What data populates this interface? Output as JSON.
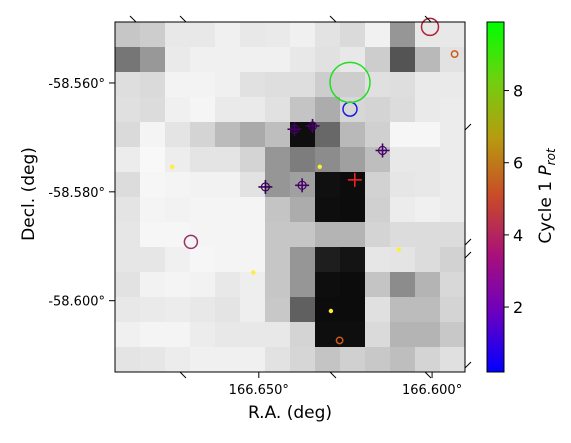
{
  "chart_data": {
    "type": "heatmap",
    "xlabel": "R.A. (deg)",
    "ylabel": "Decl. (deg)",
    "x_ticks": [
      {
        "value": 166.65,
        "label": "166.650°"
      },
      {
        "value": 166.6,
        "label": "166.600°"
      }
    ],
    "y_ticks": [
      {
        "value": -58.6,
        "label": "-58.600°"
      },
      {
        "value": -58.58,
        "label": "-58.580°"
      },
      {
        "value": -58.56,
        "label": "-58.560°"
      }
    ],
    "xlim": [
      166.6915,
      166.5905
    ],
    "ylim": [
      -58.5488,
      -58.6131
    ],
    "pixel_grid": {
      "rows": 14,
      "cols": 14,
      "gray_levels": [
        [
          198,
          205,
          232,
          232,
          240,
          232,
          234,
          240,
          227,
          218,
          241,
          150,
          232,
          232
        ],
        [
          118,
          152,
          234,
          240,
          240,
          240,
          240,
          232,
          225,
          232,
          205,
          84,
          185,
          226
        ],
        [
          222,
          218,
          243,
          243,
          240,
          225,
          222,
          222,
          205,
          205,
          224,
          222,
          234,
          234
        ],
        [
          224,
          220,
          240,
          245,
          234,
          234,
          225,
          196,
          172,
          215,
          212,
          220,
          234,
          236
        ],
        [
          218,
          244,
          228,
          212,
          187,
          170,
          190,
          14,
          104,
          185,
          208,
          246,
          246,
          236
        ],
        [
          236,
          248,
          237,
          228,
          228,
          212,
          150,
          125,
          140,
          160,
          190,
          232,
          232,
          236
        ],
        [
          220,
          246,
          244,
          242,
          242,
          226,
          150,
          160,
          16,
          12,
          210,
          230,
          232,
          236
        ],
        [
          228,
          244,
          242,
          244,
          244,
          244,
          196,
          172,
          14,
          12,
          208,
          236,
          240,
          236
        ],
        [
          230,
          246,
          246,
          244,
          244,
          244,
          198,
          198,
          180,
          180,
          212,
          220,
          220,
          220
        ],
        [
          230,
          230,
          240,
          246,
          244,
          244,
          198,
          150,
          30,
          20,
          230,
          228,
          220,
          210
        ],
        [
          226,
          242,
          244,
          242,
          232,
          238,
          198,
          150,
          14,
          12,
          196,
          140,
          180,
          216
        ],
        [
          232,
          234,
          236,
          232,
          228,
          238,
          200,
          96,
          12,
          12,
          224,
          188,
          188,
          212
        ],
        [
          240,
          244,
          244,
          236,
          232,
          232,
          232,
          212,
          14,
          14,
          218,
          180,
          180,
          200
        ],
        [
          228,
          230,
          236,
          240,
          240,
          240,
          226,
          214,
          196,
          208,
          200,
          190,
          212,
          224
        ]
      ]
    },
    "circles": [
      {
        "ra": 166.6267,
        "dec": -58.6073,
        "prot": 5.6,
        "size": 3.2,
        "color": "#cc5a1e"
      },
      {
        "ra": 166.6292,
        "dec": -58.6019,
        "prot": 0,
        "size": 2.2,
        "color": "#ffee33"
      },
      {
        "ra": 166.6516,
        "dec": -58.5948,
        "prot": 0,
        "size": 2.2,
        "color": "#ffee33"
      },
      {
        "ra": 166.6696,
        "dec": -58.5892,
        "prot": 6.2,
        "size": 6.5,
        "color": "#993366"
      },
      {
        "ra": 166.6096,
        "dec": -58.5906,
        "prot": 0,
        "size": 2.2,
        "color": "#ffee33"
      },
      {
        "ra": 166.675,
        "dec": -58.5754,
        "prot": 0,
        "size": 2.2,
        "color": "#ffee33"
      },
      {
        "ra": 166.6324,
        "dec": -58.5754,
        "prot": 0,
        "size": 2.2,
        "color": "#ffee33"
      },
      {
        "ra": 166.6237,
        "dec": -58.5648,
        "prot": 0.6,
        "size": 7.0,
        "color": "#1a1ae6"
      },
      {
        "ra": 166.6237,
        "dec": -58.5599,
        "prot": 9.2,
        "size": 20.0,
        "color": "#22dd22"
      },
      {
        "ra": 166.5935,
        "dec": -58.5547,
        "prot": 5.6,
        "size": 3.2,
        "color": "#cc5a1e"
      },
      {
        "ra": 166.6006,
        "dec": -58.5497,
        "prot": 6.8,
        "size": 8.5,
        "color": "#b0203a"
      }
    ],
    "crosses": [
      {
        "ra": 166.6481,
        "dec": -58.5791,
        "prot": 1.8,
        "color": "#330055"
      },
      {
        "ra": 166.6375,
        "dec": -58.5788,
        "prot": 2.0,
        "color": "#440066"
      },
      {
        "ra": 166.6397,
        "dec": -58.5685,
        "prot": 2.0,
        "color": "#440066"
      },
      {
        "ra": 166.6345,
        "dec": -58.5679,
        "prot": 2.0,
        "color": "#440066"
      },
      {
        "ra": 166.6143,
        "dec": -58.5724,
        "prot": 2.0,
        "color": "#440066"
      },
      {
        "ra": 166.6223,
        "dec": -58.5778,
        "prot": 6.4,
        "color": "#ee2222"
      }
    ],
    "colorbar": {
      "label": "Cycle 1 P_rot",
      "label_main": "Cycle 1 ",
      "label_var": "P",
      "label_sub": "rot",
      "range": [
        0.2,
        9.9
      ],
      "ticks": [
        {
          "value": 2,
          "label": "2"
        },
        {
          "value": 4,
          "label": "4"
        },
        {
          "value": 6,
          "label": "6"
        },
        {
          "value": 8,
          "label": "8"
        }
      ],
      "stops": [
        "#0000ff",
        "#6a00c0",
        "#a8107a",
        "#c84a28",
        "#b89a10",
        "#70d010",
        "#00ff00"
      ]
    }
  }
}
